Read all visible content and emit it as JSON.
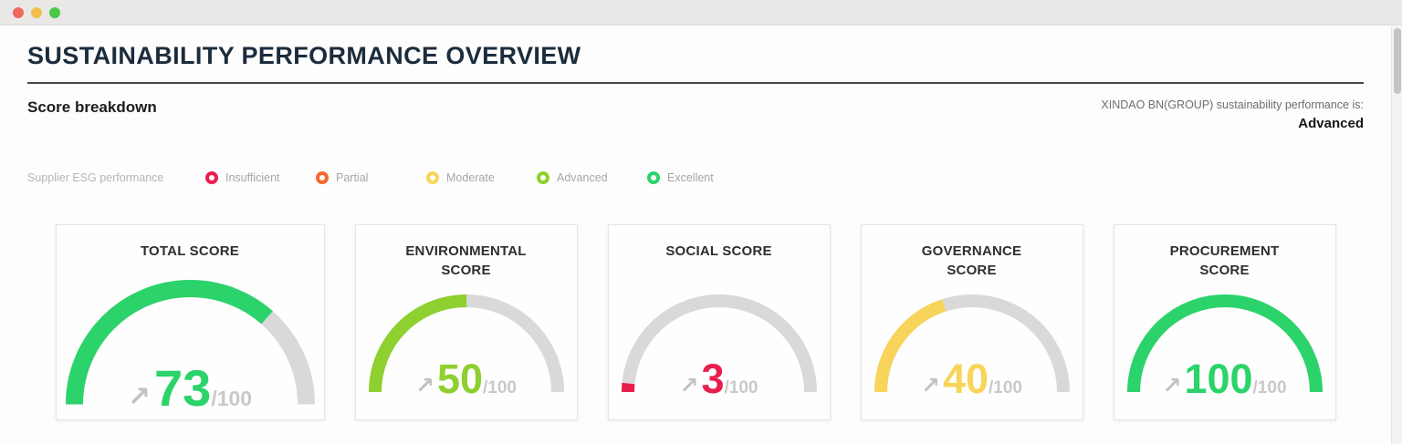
{
  "window": {
    "traffic_lights": {
      "close": "#ee6a5e",
      "minimize": "#f4be4f",
      "maximize": "#4cc748"
    }
  },
  "header": {
    "title": "SUSTAINABILITY PERFORMANCE OVERVIEW",
    "section_title": "Score breakdown",
    "performance_label": "XINDAO BN(GROUP) sustainability performance is:",
    "performance_value": "Advanced"
  },
  "legend": {
    "label": "Supplier ESG performance",
    "items": [
      {
        "label": "Insufficient",
        "color": "#e91e4f"
      },
      {
        "label": "Partial",
        "color": "#f2692f"
      },
      {
        "label": "Moderate",
        "color": "#f8d55a"
      },
      {
        "label": "Advanced",
        "color": "#8ed02f"
      },
      {
        "label": "Excellent",
        "color": "#2bd36a"
      }
    ]
  },
  "chart_data": {
    "type": "gauge",
    "max": 100,
    "max_label": "/100",
    "trend_icon": "↗",
    "track_color": "#d9d9d9",
    "gauges": [
      {
        "title": "TOTAL SCORE",
        "value": 73,
        "color": "#2bd36a"
      },
      {
        "title": "ENVIRONMENTAL SCORE",
        "value": 50,
        "color": "#8ed02f"
      },
      {
        "title": "SOCIAL SCORE",
        "value": 3,
        "color": "#e91e4f"
      },
      {
        "title": "GOVERNANCE SCORE",
        "value": 40,
        "color": "#f8d55a"
      },
      {
        "title": "PROCUREMENT SCORE",
        "value": 100,
        "color": "#2bd36a"
      }
    ]
  }
}
